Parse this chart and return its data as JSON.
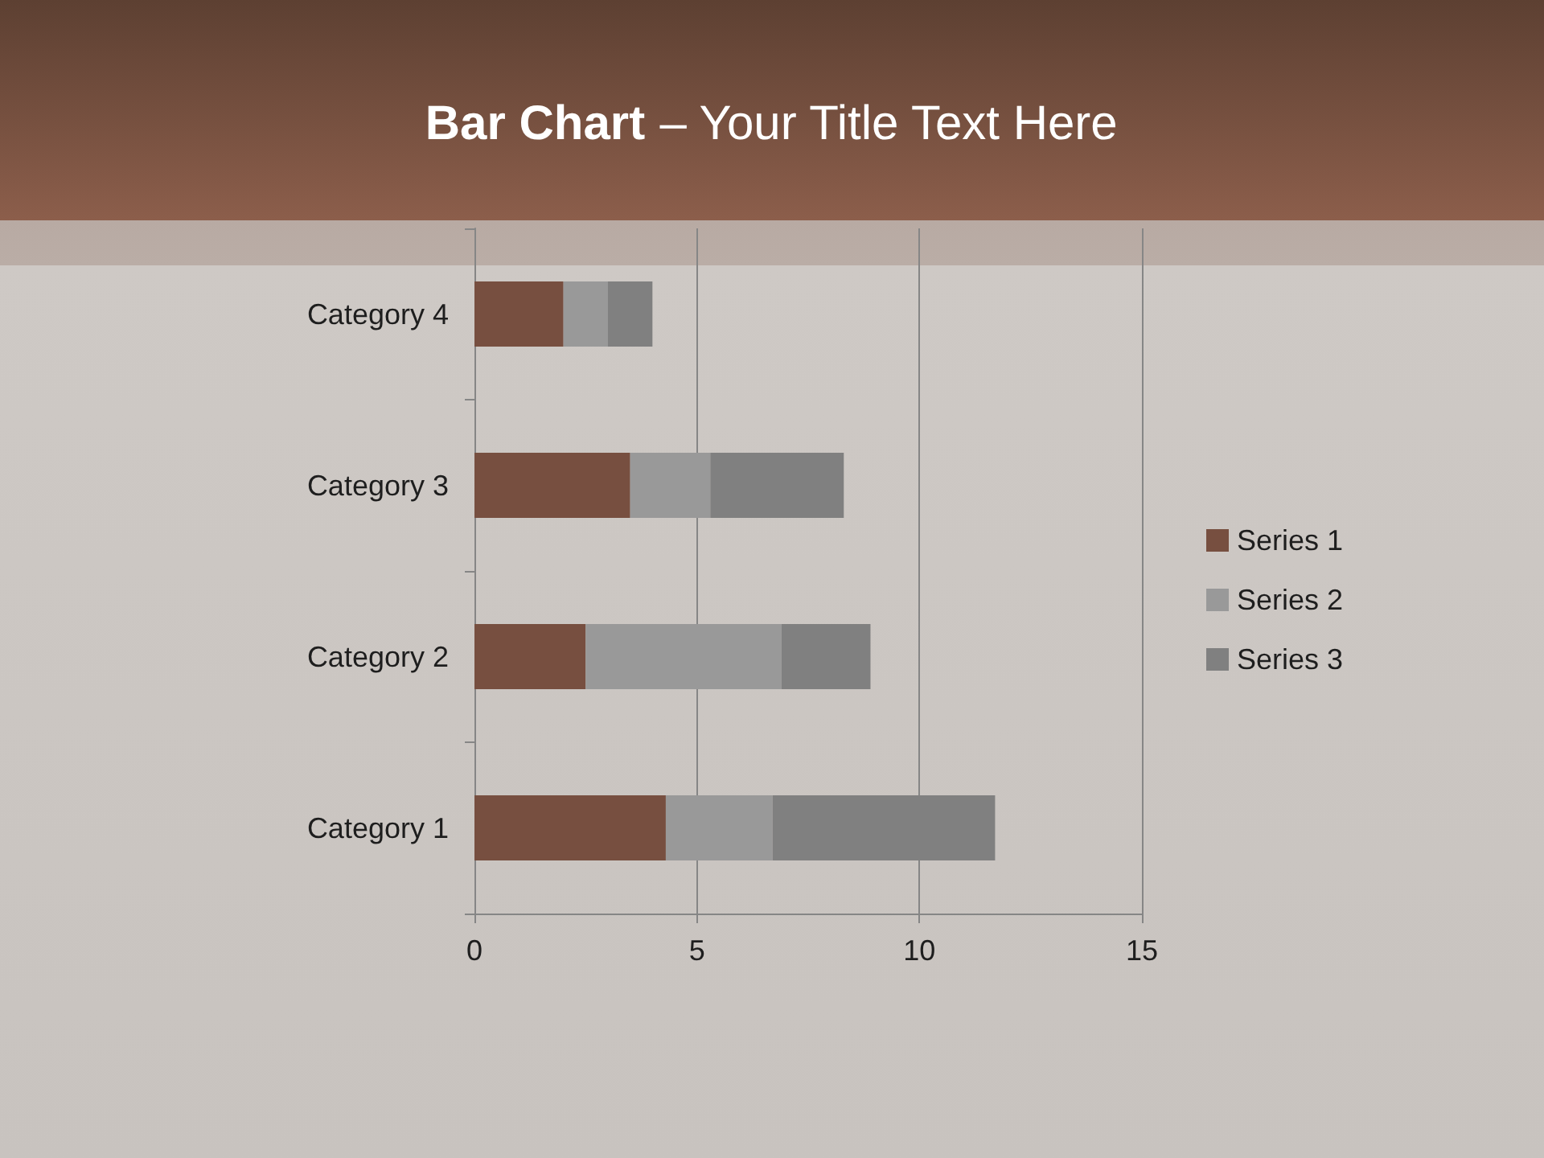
{
  "chart_data": {
    "type": "bar",
    "title": "Bar Chart – Your Title Text Here",
    "orientation": "horizontal",
    "stacked": true,
    "categories": [
      "Category 4",
      "Category 3",
      "Category 2",
      "Category 1"
    ],
    "series": [
      {
        "name": "Series 1",
        "color": "#774f40",
        "values": [
          2,
          3.5,
          2.5,
          4.3
        ]
      },
      {
        "name": "Series 2",
        "color": "#999999",
        "values": [
          1,
          1.8,
          4.4,
          2.4
        ]
      },
      {
        "name": "Series 3",
        "color": "#808080",
        "values": [
          1,
          3,
          2,
          5
        ]
      }
    ],
    "xlim": [
      0,
      15
    ],
    "xticks": [
      0,
      5,
      10,
      15
    ],
    "grid": "x",
    "legend": "right"
  }
}
